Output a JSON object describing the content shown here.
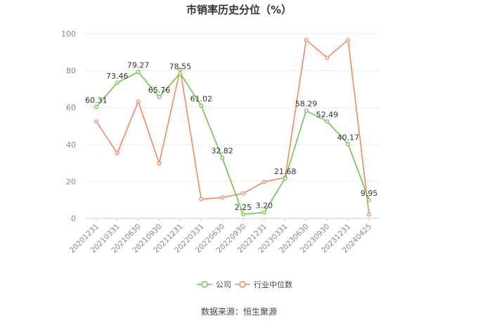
{
  "chart_data": {
    "type": "line",
    "title": "市销率历史分位（%）",
    "categories": [
      "20201231",
      "20210331",
      "20210630",
      "20210930",
      "20211231",
      "20220331",
      "20220630",
      "20220930",
      "20221231",
      "20230331",
      "20230630",
      "20230930",
      "20231231",
      "20240425"
    ],
    "series": [
      {
        "name": "公司",
        "color": "#6cc644",
        "values": [
          60.31,
          73.46,
          79.27,
          65.76,
          78.55,
          61.02,
          32.82,
          2.25,
          3.2,
          21.68,
          58.29,
          52.49,
          40.17,
          9.95
        ],
        "labels": [
          "60.31",
          "73.46",
          "79.27",
          "65.76",
          "78.55",
          "61.02",
          "32.82",
          "2.25",
          "3.20",
          "21.68",
          "58.29",
          "52.49",
          "40.17",
          "9.95"
        ]
      },
      {
        "name": "行业中位数",
        "color": "#f4875d",
        "values": [
          52.5,
          35.3,
          63.2,
          29.8,
          80.6,
          10.4,
          11.3,
          13.5,
          19.8,
          22.1,
          96.6,
          87.0,
          96.6,
          2.1
        ]
      }
    ],
    "ylim": [
      0,
      100
    ],
    "yticks": [
      0,
      20,
      40,
      60,
      80,
      100
    ],
    "grid": true,
    "legend_position": "bottom"
  },
  "source_text": "数据来源：恒生聚源"
}
